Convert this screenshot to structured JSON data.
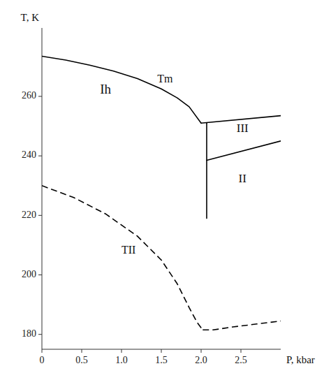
{
  "chart_data": {
    "type": "line",
    "xlabel": "P, kbar",
    "ylabel": "T, K",
    "xlim": [
      0,
      3.0
    ],
    "ylim": [
      175,
      283
    ],
    "xticks": [
      0,
      0.5,
      {
        "value": 1.0,
        "label": "1.0"
      },
      1.5,
      {
        "value": 2.0,
        "label": "2.0"
      },
      2.5
    ],
    "yticks": [
      180,
      200,
      220,
      240,
      260
    ],
    "grid": false,
    "series": [
      {
        "x": [
          0.0,
          0.3,
          0.6,
          0.9,
          1.2,
          1.5,
          1.7,
          1.85,
          2.0
        ],
        "values": [
          273.5,
          272.2,
          270.5,
          268.5,
          266.0,
          262.5,
          259.5,
          256.5,
          251.0
        ],
        "color": "#000000",
        "line_style": "solid"
      },
      {
        "x": [
          2.0,
          3.0
        ],
        "values": [
          251.0,
          253.5
        ],
        "color": "#000000",
        "line_style": "solid"
      },
      {
        "x": [
          2.07,
          3.0
        ],
        "values": [
          238.5,
          245.0
        ],
        "color": "#000000",
        "line_style": "solid"
      },
      {
        "x": [
          2.07,
          2.07
        ],
        "values": [
          219.0,
          251.0
        ],
        "color": "#000000",
        "line_style": "solid"
      },
      {
        "x": [
          0.0,
          0.4,
          0.8,
          1.2,
          1.5,
          1.7,
          1.85,
          1.95,
          2.02
        ],
        "values": [
          230.0,
          226.0,
          220.5,
          213.0,
          205.0,
          197.0,
          189.0,
          184.0,
          181.5
        ],
        "color": "#000000",
        "line_style": "dashed"
      },
      {
        "x": [
          2.02,
          2.15,
          2.4,
          2.7,
          3.0
        ],
        "values": [
          181.5,
          181.5,
          182.5,
          183.5,
          184.5
        ],
        "color": "#000000",
        "line_style": "dashed"
      }
    ],
    "annotations": [
      {
        "text": "Tm",
        "x": 1.45,
        "y": 264
      },
      {
        "text": "Ih",
        "x": 0.8,
        "y": 262
      },
      {
        "text": "III",
        "x": 2.52,
        "y": 249
      },
      {
        "text": "II",
        "x": 2.52,
        "y": 232
      },
      {
        "text": "TII",
        "x": 1.0,
        "y": 208
      }
    ]
  }
}
